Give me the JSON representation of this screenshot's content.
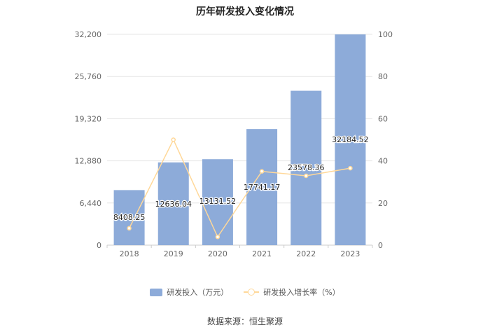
{
  "chart_data": {
    "type": "bar",
    "title": "历年研发投入变化情况",
    "categories": [
      "2018",
      "2019",
      "2020",
      "2021",
      "2022",
      "2023"
    ],
    "series": [
      {
        "name": "研发投入（万元）",
        "type": "bar",
        "axis": "left",
        "color": "#8dabd9",
        "values": [
          8408.25,
          12636.04,
          13131.52,
          17741.17,
          23578.36,
          32184.52
        ],
        "labels": [
          "8408.25",
          "12636.04",
          "13131.52",
          "17741.17",
          "23578.36",
          "32184.52"
        ]
      },
      {
        "name": "研发投入增长率（%）",
        "type": "line",
        "axis": "right",
        "color": "#ffd899",
        "values": [
          8,
          50,
          3.9,
          35,
          32.9,
          36.5
        ]
      }
    ],
    "left_axis": {
      "min": 0,
      "max": 32200,
      "ticks": [
        "0",
        "6,440",
        "12,880",
        "19,320",
        "25,760",
        "32,200"
      ]
    },
    "right_axis": {
      "min": 0,
      "max": 100,
      "ticks": [
        "0",
        "20",
        "40",
        "60",
        "80",
        "100"
      ]
    },
    "grid": true,
    "legend_position": "bottom"
  },
  "source": "数据来源：恒生聚源"
}
